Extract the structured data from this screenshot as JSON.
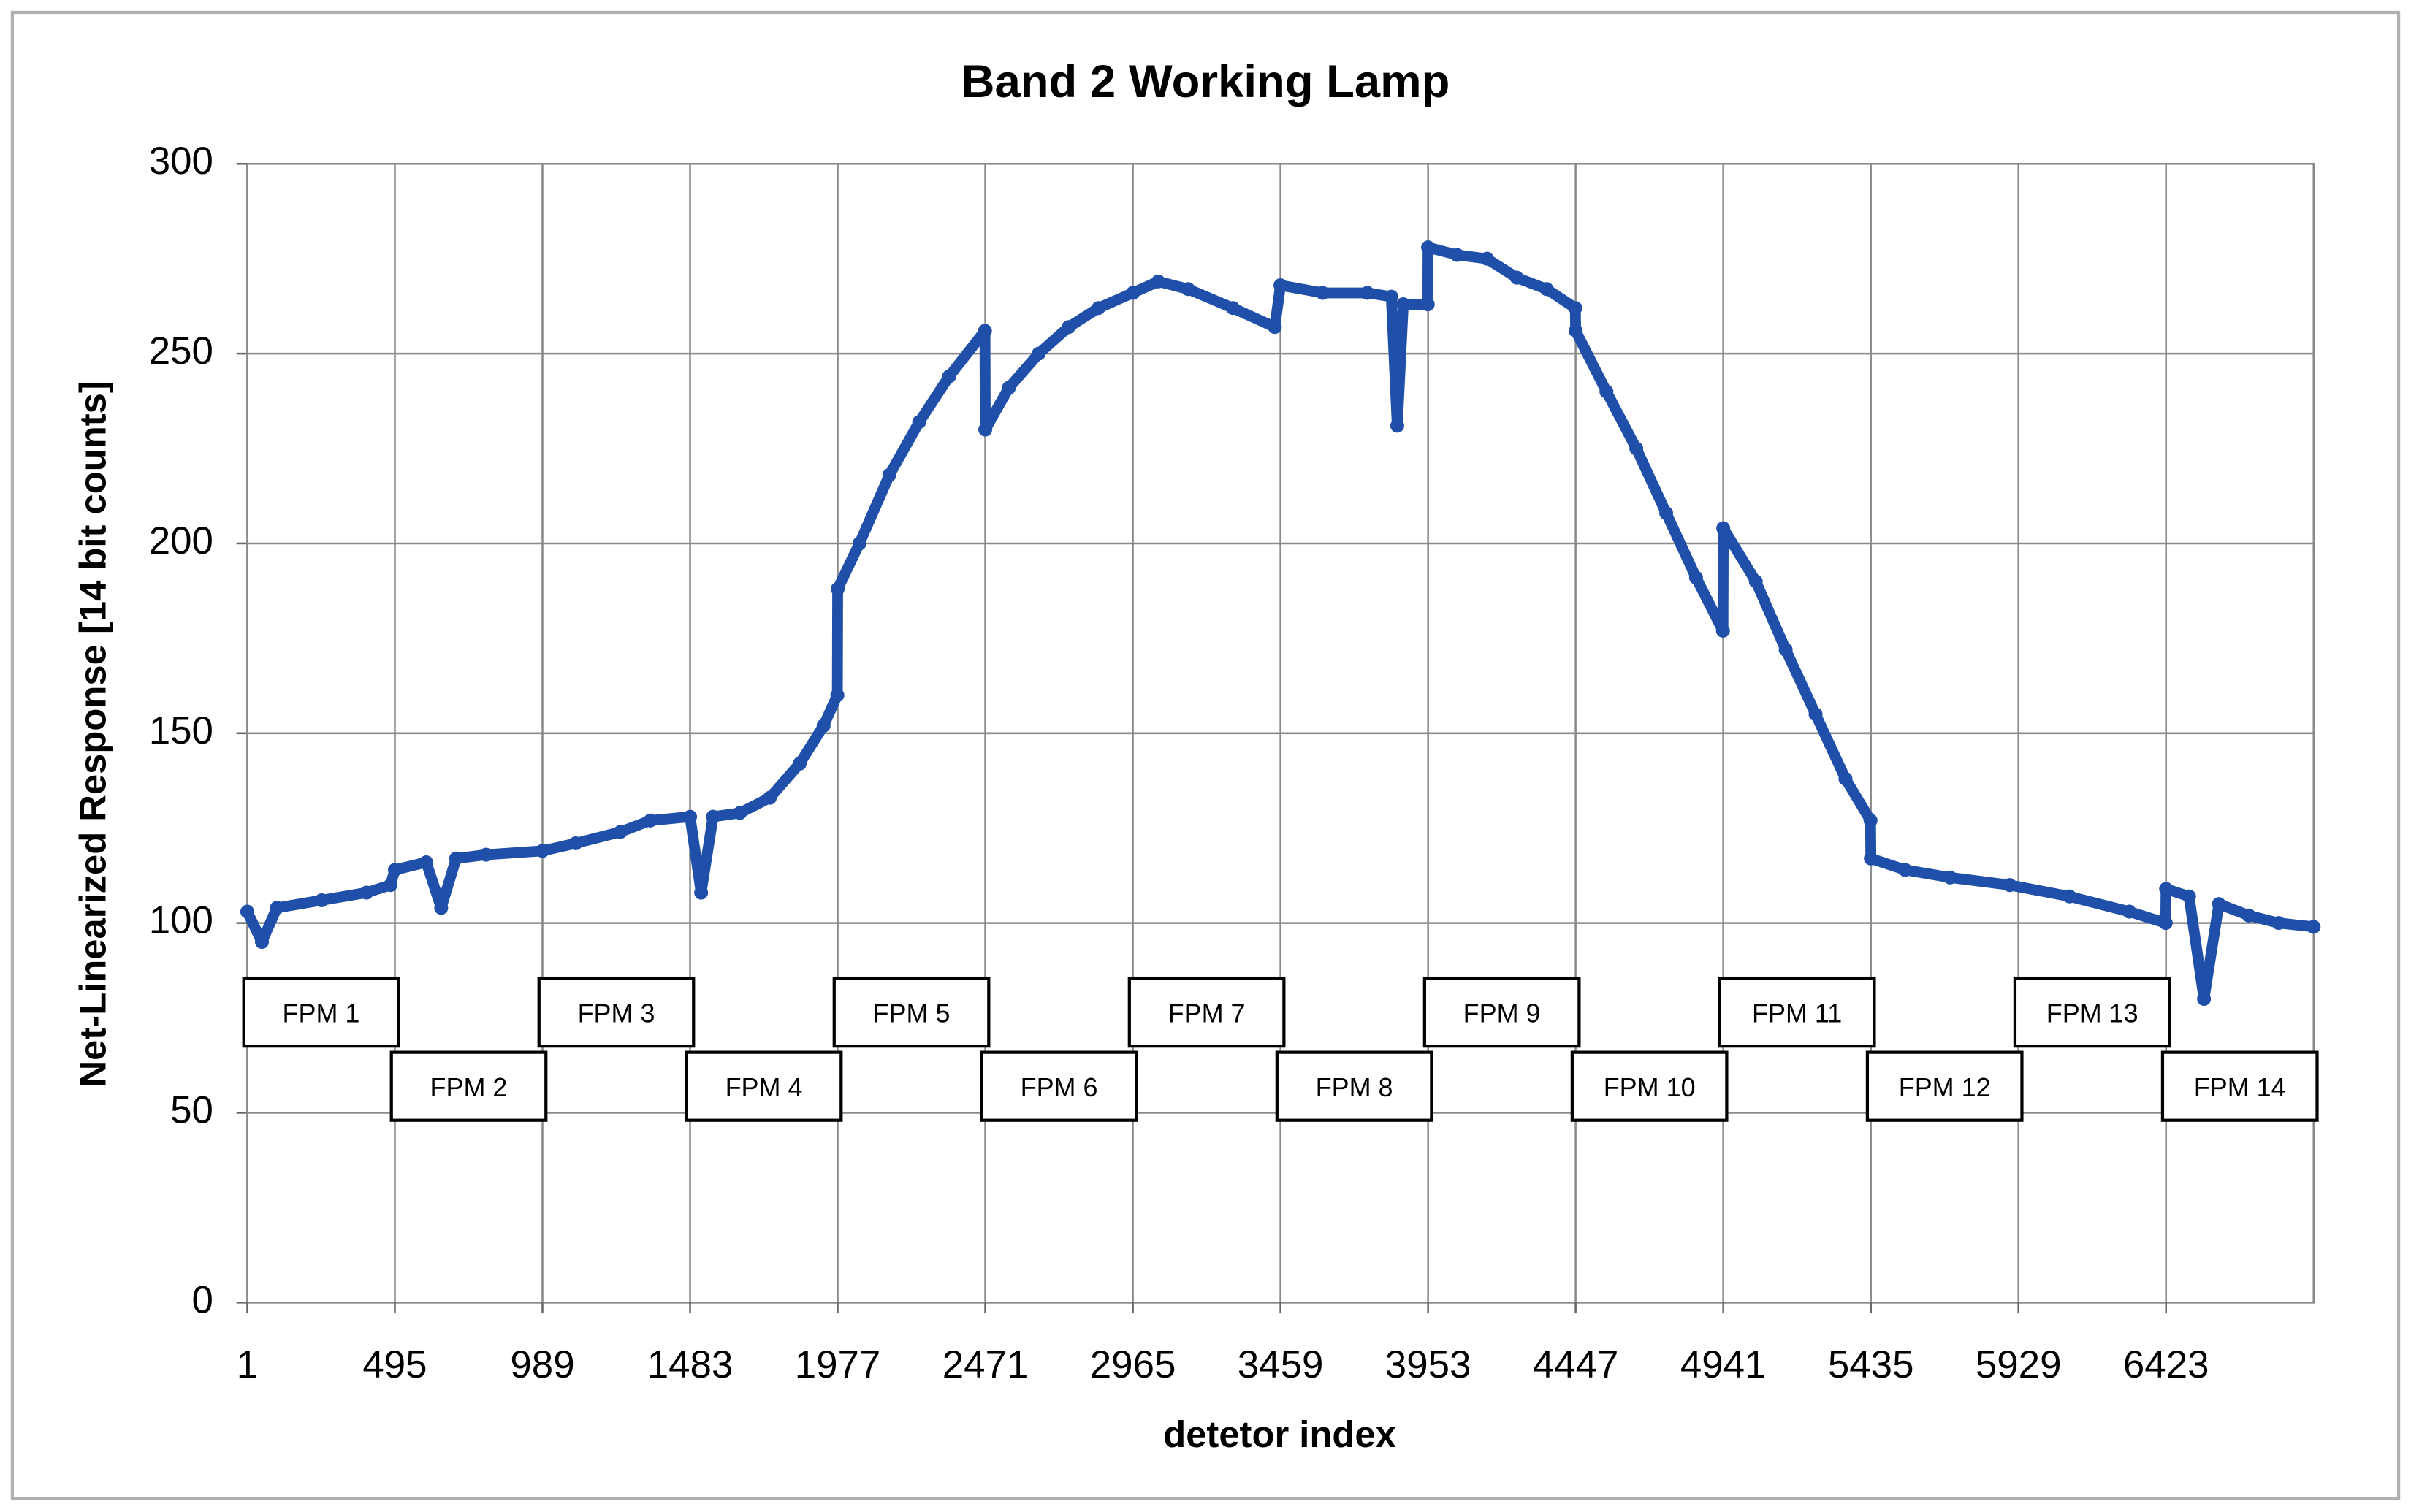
{
  "chart_data": {
    "type": "line",
    "title": "Band 2 Working Lamp",
    "x_label": "detetor index",
    "y_label": "Net-Linearized Response [14 bit counts]",
    "color": "#1f4fa8",
    "grid": true,
    "xlim": [
      1,
      6917
    ],
    "ylim": [
      0,
      300
    ],
    "xticks": [
      1,
      495,
      989,
      1483,
      1977,
      2471,
      2965,
      3459,
      3953,
      4447,
      4941,
      5435,
      5929,
      6423
    ],
    "yticks": [
      0,
      50,
      100,
      150,
      200,
      250,
      300
    ],
    "x": [
      1,
      50,
      100,
      250,
      400,
      480,
      495,
      600,
      650,
      700,
      800,
      989,
      1100,
      1250,
      1350,
      1483,
      1520,
      1560,
      1650,
      1750,
      1850,
      1930,
      1976,
      1977,
      2050,
      2150,
      2250,
      2350,
      2470,
      2471,
      2550,
      2650,
      2750,
      2850,
      2965,
      3050,
      3150,
      3300,
      3440,
      3459,
      3600,
      3750,
      3830,
      3850,
      3870,
      3952,
      3953,
      4050,
      4150,
      4250,
      4350,
      4446,
      4447,
      4550,
      4650,
      4750,
      4850,
      4940,
      4941,
      5050,
      5150,
      5250,
      5350,
      5434,
      5435,
      5550,
      5700,
      5900,
      6100,
      6300,
      6422,
      6423,
      6500,
      6550,
      6600,
      6700,
      6800,
      6917
    ],
    "values": [
      103,
      95,
      104,
      106,
      108,
      110,
      114,
      116,
      104,
      117,
      118,
      119,
      121,
      124,
      127,
      128,
      108,
      128,
      129,
      133,
      142,
      152,
      160,
      188,
      200,
      218,
      232,
      244,
      256,
      230,
      241,
      250,
      257,
      262,
      266,
      269,
      267,
      262,
      257,
      268,
      266,
      266,
      265,
      231,
      263,
      263,
      278,
      276,
      275,
      270,
      267,
      262,
      256,
      240,
      225,
      208,
      191,
      177,
      204,
      190,
      172,
      155,
      138,
      127,
      117,
      114,
      112,
      110,
      107,
      103,
      100,
      109,
      107,
      80,
      105,
      102,
      100,
      99
    ],
    "annotations": [
      "FPM 1",
      "FPM 2",
      "FPM 3",
      "FPM 4",
      "FPM 5",
      "FPM 6",
      "FPM 7",
      "FPM 8",
      "FPM 9",
      "FPM 10",
      "FPM 11",
      "FPM 12",
      "FPM 13",
      "FPM 14"
    ]
  }
}
